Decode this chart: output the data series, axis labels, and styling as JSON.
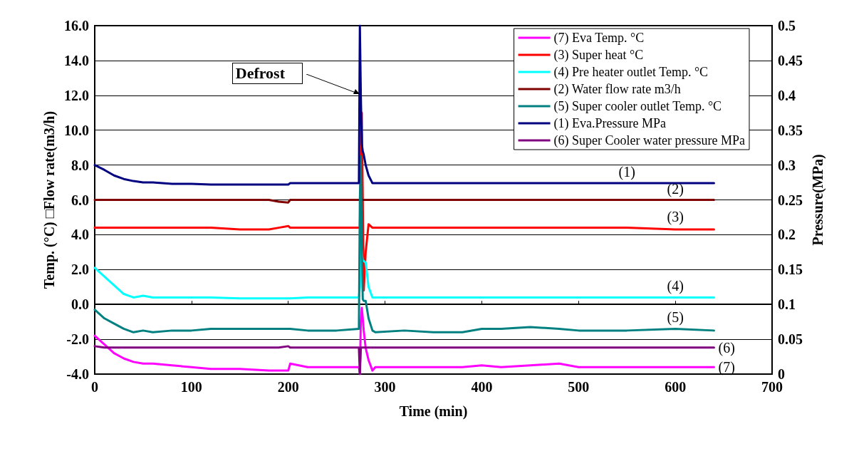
{
  "chart_data": {
    "type": "line",
    "xlabel": "Time (min)",
    "ylabel": "Temp. (°C) □Flow rate(m3/h)",
    "y2label": "Pressure(MPa)",
    "x": [
      0,
      10,
      20,
      30,
      40,
      50,
      60,
      80,
      100,
      120,
      150,
      180,
      190,
      200,
      202,
      220,
      250,
      273,
      274,
      275,
      276,
      277,
      278,
      280,
      283,
      287,
      290,
      320,
      350,
      380,
      400,
      420,
      450,
      480,
      500,
      550,
      600,
      640
    ],
    "series": [
      {
        "name": "(7) Eva Temp. °C",
        "color": "#ff00ff",
        "values": [
          -1.8,
          -2.3,
          -2.8,
          -3.1,
          -3.3,
          -3.4,
          -3.4,
          -3.5,
          -3.6,
          -3.7,
          -3.7,
          -3.8,
          -3.8,
          -3.8,
          -3.4,
          -3.6,
          -3.6,
          -3.6,
          -4.0,
          -1.0,
          -0.2,
          -0.8,
          -1.5,
          -2.5,
          -3.2,
          -3.8,
          -3.6,
          -3.6,
          -3.6,
          -3.6,
          -3.5,
          -3.6,
          -3.5,
          -3.4,
          -3.6,
          -3.6,
          -3.6,
          -3.6
        ]
      },
      {
        "name": "(3) Super heat °C",
        "color": "#ff0000",
        "values": [
          4.4,
          4.4,
          4.4,
          4.4,
          4.4,
          4.4,
          4.4,
          4.4,
          4.4,
          4.4,
          4.3,
          4.3,
          4.4,
          4.5,
          4.4,
          4.4,
          4.4,
          4.4,
          4.4,
          8.0,
          11.0,
          6.0,
          0.8,
          3.0,
          4.6,
          4.4,
          4.4,
          4.4,
          4.4,
          4.4,
          4.4,
          4.4,
          4.4,
          4.4,
          4.4,
          4.4,
          4.3,
          4.3
        ]
      },
      {
        "name": "(4) Pre heater outlet Temp. °C",
        "color": "#00ffff",
        "values": [
          2.1,
          1.6,
          1.1,
          0.6,
          0.4,
          0.5,
          0.4,
          0.4,
          0.4,
          0.4,
          0.35,
          0.35,
          0.35,
          0.35,
          0.35,
          0.4,
          0.4,
          0.4,
          1.0,
          3.6,
          3.0,
          2.5,
          2.5,
          2.4,
          1.0,
          0.4,
          0.4,
          0.4,
          0.4,
          0.4,
          0.4,
          0.4,
          0.4,
          0.4,
          0.4,
          0.4,
          0.4,
          0.4
        ]
      },
      {
        "name": "(2) Water flow rate m3/h",
        "color": "#800000",
        "values": [
          6.0,
          6.0,
          6.0,
          6.0,
          6.0,
          6.0,
          6.0,
          6.0,
          6.0,
          6.0,
          6.0,
          6.0,
          5.9,
          5.85,
          6.0,
          6.0,
          6.0,
          6.0,
          6.0,
          6.0,
          6.0,
          6.0,
          6.0,
          6.0,
          6.0,
          6.0,
          6.0,
          6.0,
          6.0,
          6.0,
          6.0,
          6.0,
          6.0,
          6.0,
          6.0,
          6.0,
          6.0,
          6.0
        ]
      },
      {
        "name": "(5) Super cooler outlet Temp. °C",
        "color": "#008080",
        "values": [
          -0.3,
          -0.8,
          -1.1,
          -1.4,
          -1.6,
          -1.5,
          -1.6,
          -1.5,
          -1.5,
          -1.4,
          -1.4,
          -1.4,
          -1.4,
          -1.4,
          -1.4,
          -1.5,
          -1.5,
          -1.4,
          6.0,
          8.5,
          3.0,
          0.3,
          0.2,
          0.2,
          -0.8,
          -1.5,
          -1.6,
          -1.5,
          -1.6,
          -1.6,
          -1.4,
          -1.4,
          -1.3,
          -1.4,
          -1.5,
          -1.5,
          -1.4,
          -1.5
        ]
      },
      {
        "name": "(1) Eva.Pressure MPa",
        "color": "#000080",
        "axis": "y2",
        "values": [
          0.3,
          0.293,
          0.285,
          0.28,
          0.277,
          0.275,
          0.275,
          0.273,
          0.273,
          0.272,
          0.272,
          0.272,
          0.272,
          0.272,
          0.274,
          0.274,
          0.274,
          0.274,
          0.5,
          0.4,
          0.33,
          0.32,
          0.315,
          0.3,
          0.285,
          0.274,
          0.274,
          0.274,
          0.274,
          0.274,
          0.274,
          0.274,
          0.274,
          0.274,
          0.274,
          0.274,
          0.274,
          0.274
        ]
      },
      {
        "name": "(6) Super Cooler water pressure MPa",
        "color": "#800080",
        "axis": "y2",
        "values": [
          0.04,
          0.038,
          0.038,
          0.038,
          0.038,
          0.038,
          0.038,
          0.038,
          0.038,
          0.038,
          0.038,
          0.038,
          0.038,
          0.04,
          0.038,
          0.038,
          0.038,
          0.038,
          0.0,
          0.038,
          0.038,
          0.038,
          0.038,
          0.038,
          0.038,
          0.038,
          0.038,
          0.038,
          0.038,
          0.038,
          0.038,
          0.038,
          0.038,
          0.038,
          0.038,
          0.038,
          0.038,
          0.038
        ]
      }
    ],
    "xlim": [
      0,
      700
    ],
    "xticks": [
      0,
      100,
      200,
      300,
      400,
      500,
      600,
      700
    ],
    "ylim": [
      -4,
      16
    ],
    "yticks": [
      {
        "value": -4,
        "label": "-4.0"
      },
      {
        "value": -2,
        "label": "-2.0"
      },
      {
        "value": 0,
        "label": "0.0"
      },
      {
        "value": 2,
        "label": "2.0"
      },
      {
        "value": 4,
        "label": "4.0"
      },
      {
        "value": 6,
        "label": "6.0"
      },
      {
        "value": 8,
        "label": "8.0"
      },
      {
        "value": 10,
        "label": "10.0"
      },
      {
        "value": 12,
        "label": "12.0"
      },
      {
        "value": 14,
        "label": "14.0"
      },
      {
        "value": 16,
        "label": "16.0"
      }
    ],
    "y2lim": [
      0,
      0.5
    ],
    "y2ticks": [
      0,
      0.05,
      0.1,
      0.15,
      0.2,
      0.25,
      0.3,
      0.35,
      0.4,
      0.45,
      0.5
    ],
    "annotations": [
      "Defrost",
      {
        "text": "(1)",
        "x": 550,
        "y": 6.96
      },
      {
        "text": "(2)",
        "x": 600,
        "y": 6.0
      },
      {
        "text": "(3)",
        "x": 600,
        "y": 4.4
      },
      {
        "text": "(4)",
        "x": 600,
        "y": 0.4
      },
      {
        "text": "(5)",
        "x": 600,
        "y": -1.4
      },
      {
        "text": "(6)",
        "x": 640,
        "y": -2.48
      },
      {
        "text": "(7)",
        "x": 640,
        "y": -3.6
      }
    ],
    "grid": "y",
    "legend": "top right"
  }
}
